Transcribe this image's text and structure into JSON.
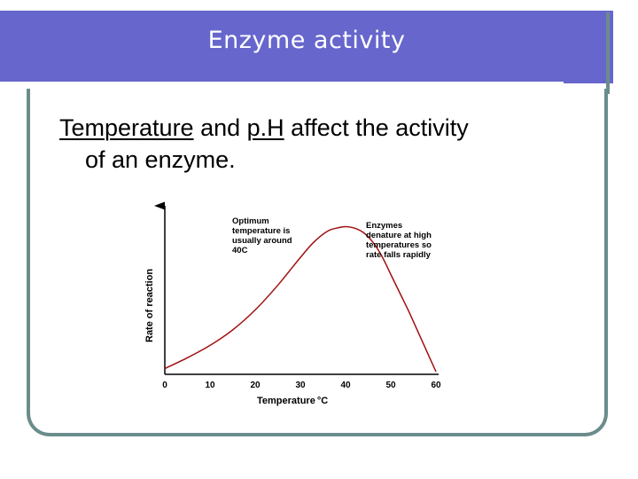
{
  "slide": {
    "title": "Enzyme activity",
    "body_parts": {
      "w1": "Temperature",
      "w2": " and ",
      "w3": "p.H",
      "w4": " affect the activity",
      "w5": "of an enzyme."
    }
  },
  "colors": {
    "title_bar": "#6666cc",
    "frame": "#6c8c8c",
    "curve": "#a01010"
  },
  "chart_data": {
    "type": "line",
    "xlabel": "Temperature",
    "xlabel_unit": "°C",
    "ylabel": "Rate of reaction",
    "xlim": [
      0,
      60
    ],
    "ylim": [
      0,
      100
    ],
    "x_ticks": [
      "0",
      "10",
      "20",
      "30",
      "40",
      "50",
      "60"
    ],
    "y_ticks": [],
    "grid": false,
    "legend": "none",
    "series": [
      {
        "x": [
          0,
          5,
          10,
          15,
          20,
          25,
          30,
          33,
          36,
          38,
          40,
          42,
          44,
          46,
          48,
          50,
          52,
          54,
          56,
          58,
          60
        ],
        "y": [
          2,
          9,
          17,
          27,
          40,
          56,
          74,
          84,
          91,
          93,
          94,
          93,
          90,
          84,
          75,
          63,
          51,
          39,
          26,
          13,
          0
        ]
      }
    ],
    "annotations": [
      {
        "lines": [
          "Optimum",
          "temperature is",
          "usually around",
          "40C"
        ]
      },
      {
        "lines": [
          "Enzymes",
          "denature at high",
          "temperatures so",
          "rate falls rapidly"
        ]
      }
    ]
  }
}
